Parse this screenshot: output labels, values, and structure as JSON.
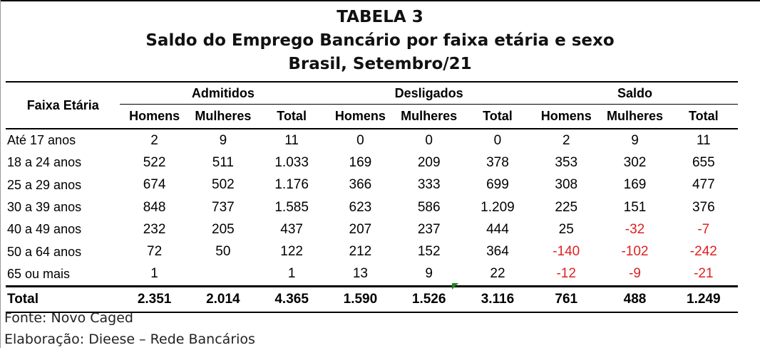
{
  "title": {
    "line1": "TABELA 3",
    "line2": "Saldo do Emprego Bancário por faixa etária e sexo",
    "line3": "Brasil, Setembro/21"
  },
  "table": {
    "facet_header": "Faixa Etária",
    "groups": [
      "Admitidos",
      "Desligados",
      "Saldo"
    ],
    "subheaders": [
      "Homens",
      "Mulheres",
      "Total",
      "Homens",
      "Mulheres",
      "Total",
      "Homens",
      "Mulheres",
      "Total"
    ],
    "rows": [
      {
        "label": "Até 17 anos",
        "values": [
          "2",
          "9",
          "11",
          "0",
          "0",
          "0",
          "2",
          "9",
          "11"
        ]
      },
      {
        "label": "18 a 24 anos",
        "values": [
          "522",
          "511",
          "1.033",
          "169",
          "209",
          "378",
          "353",
          "302",
          "655"
        ]
      },
      {
        "label": "25 a 29 anos",
        "values": [
          "674",
          "502",
          "1.176",
          "366",
          "333",
          "699",
          "308",
          "169",
          "477"
        ]
      },
      {
        "label": "30 a 39 anos",
        "values": [
          "848",
          "737",
          "1.585",
          "623",
          "586",
          "1.209",
          "225",
          "151",
          "376"
        ]
      },
      {
        "label": "40 a 49 anos",
        "values": [
          "232",
          "205",
          "437",
          "207",
          "237",
          "444",
          "25",
          "-32",
          "-7"
        ]
      },
      {
        "label": "50 a 64 anos",
        "values": [
          "72",
          "50",
          "122",
          "212",
          "152",
          "364",
          "-140",
          "-102",
          "-242"
        ]
      },
      {
        "label": "65 ou mais",
        "values": [
          "1",
          "",
          "1",
          "13",
          "9",
          "22",
          "-12",
          "-9",
          "-21"
        ]
      }
    ],
    "total": {
      "label": "Total",
      "values": [
        "2.351",
        "2.014",
        "4.365",
        "1.590",
        "1.526",
        "3.116",
        "761",
        "488",
        "1.249"
      ]
    },
    "negative_color": "#e02020"
  },
  "notes": {
    "source": "Fonte: Novo Caged",
    "elaboration": "Elaboração: Dieese – Rede Bancários"
  }
}
